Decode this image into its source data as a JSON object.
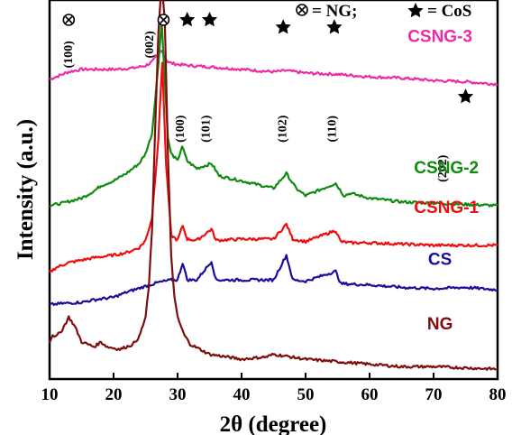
{
  "chart_data": {
    "type": "line",
    "xlabel": "2θ (degree)",
    "ylabel": "Intensity (a.u.)",
    "xlim": [
      10,
      80
    ],
    "x_ticks": [
      "10",
      "20",
      "30",
      "40",
      "50",
      "60",
      "70",
      "80"
    ],
    "y_ticks_labeled": false,
    "grid": false,
    "legend": {
      "ng_marker_text": "= NG;",
      "cos_marker_text": "= CoS"
    },
    "series": [
      {
        "name": "CSNG-3",
        "color": "#ee2aa6",
        "x": [
          10,
          12,
          13,
          15,
          17,
          20,
          23,
          25,
          26,
          27,
          27.5,
          28,
          28.5,
          29,
          30,
          32,
          35,
          40,
          45,
          47,
          50,
          55,
          60,
          65,
          70,
          75,
          80
        ],
        "y": [
          96,
          98,
          99,
          100,
          100,
          100,
          100.5,
          101.5,
          103,
          106,
          108,
          105,
          103,
          102.5,
          102,
          101.5,
          101,
          100,
          99,
          99.5,
          98.5,
          98,
          97,
          96.5,
          95.5,
          95,
          94
        ]
      },
      {
        "name": "CSNG-2",
        "color": "#108a10",
        "x": [
          10,
          12,
          15,
          17,
          18,
          20,
          22,
          24,
          25,
          26,
          27,
          27.5,
          28,
          28.5,
          29,
          30,
          30.7,
          31.5,
          33,
          35.3,
          36.5,
          40,
          45,
          47,
          48.5,
          50,
          54.7,
          56,
          57,
          60,
          65,
          70,
          75,
          80
        ],
        "y": [
          45,
          46,
          48,
          51,
          53,
          55,
          58,
          62,
          66,
          74,
          102,
          120,
          96,
          72,
          66,
          63,
          69,
          63,
          60,
          62,
          57,
          55,
          52,
          58,
          52,
          49,
          54,
          49,
          50,
          48,
          46.5,
          46,
          45.5,
          45
        ]
      },
      {
        "name": "CSNG-1",
        "color": "#ee0e0e",
        "x": [
          10,
          11,
          12,
          13,
          15,
          17,
          20,
          22,
          24,
          25,
          26,
          27,
          27.6,
          28.2,
          29,
          30,
          30.8,
          31.5,
          33,
          35.3,
          36,
          40,
          45,
          47,
          48,
          50,
          54.7,
          55.5,
          57,
          60,
          65,
          70,
          75,
          80
        ],
        "y": [
          18,
          20,
          21,
          22,
          23,
          24,
          25,
          26,
          28,
          31,
          40,
          72,
          103,
          62,
          33,
          31,
          37,
          31.5,
          31,
          35.5,
          31,
          31.5,
          31.5,
          37.5,
          31.5,
          30.5,
          35,
          30.5,
          30,
          30,
          29.5,
          29,
          29,
          29
        ]
      },
      {
        "name": "CS",
        "color": "#1a0e99",
        "x": [
          10,
          12,
          15,
          17,
          20,
          22,
          25,
          27,
          29,
          30,
          30.8,
          31.5,
          33,
          35.3,
          36,
          40,
          45,
          47,
          48,
          50,
          54.7,
          55.5,
          60,
          65,
          70,
          75,
          80
        ],
        "y": [
          5,
          5.5,
          6,
          7,
          8,
          10,
          12.5,
          14,
          15,
          15,
          22,
          15,
          15,
          22.5,
          15,
          15,
          15,
          25,
          15,
          14.5,
          18.5,
          13.5,
          13,
          12,
          11.5,
          12,
          11
        ]
      },
      {
        "name": "NG",
        "color": "#7e0e0e",
        "x": [
          10,
          10.5,
          11,
          12,
          13,
          14,
          15,
          17,
          18,
          19,
          21,
          22,
          23,
          24,
          25,
          25.5,
          26,
          26.5,
          27,
          27.5,
          28,
          28.5,
          29,
          29.5,
          30,
          31,
          32,
          35,
          40,
          44,
          45,
          50,
          55,
          60,
          65,
          70,
          75,
          80
        ],
        "y": [
          -10,
          -7,
          -8,
          -5,
          0,
          -4,
          -10,
          -12,
          -10,
          -12,
          -13,
          -12,
          -11,
          -8,
          0,
          12,
          35,
          75,
          115,
          135,
          120,
          65,
          25,
          8,
          0,
          -7,
          -11,
          -15,
          -17,
          -16,
          -15,
          -17,
          -18,
          -19,
          -20,
          -20,
          -20.5,
          -21
        ]
      }
    ],
    "annotations": [
      {
        "text": "(100)",
        "x": 13.5,
        "y": 106,
        "rotated": true
      },
      {
        "text": "(002)",
        "x": 26.2,
        "y": 110,
        "rotated": true
      },
      {
        "text": "(100)",
        "x": 31,
        "y": 76,
        "rotated": true
      },
      {
        "text": "(101)",
        "x": 35,
        "y": 76,
        "rotated": true
      },
      {
        "text": "(102)",
        "x": 47,
        "y": 76,
        "rotated": true
      },
      {
        "text": "(110)",
        "x": 54.7,
        "y": 76,
        "rotated": true
      },
      {
        "text": "(202)",
        "x": 72,
        "y": 60,
        "rotated": true
      }
    ],
    "markers": [
      {
        "type": "NG",
        "x": 13,
        "y": 120
      },
      {
        "type": "NG",
        "x": 27.8,
        "y": 120
      },
      {
        "type": "CoS",
        "x": 31.5,
        "y": 120
      },
      {
        "type": "CoS",
        "x": 35,
        "y": 120
      },
      {
        "type": "CoS",
        "x": 46.5,
        "y": 117
      },
      {
        "type": "CoS",
        "x": 54.5,
        "y": 117
      },
      {
        "type": "CoS",
        "x": 75,
        "y": 89
      }
    ],
    "ylim": [
      -25,
      128
    ]
  }
}
